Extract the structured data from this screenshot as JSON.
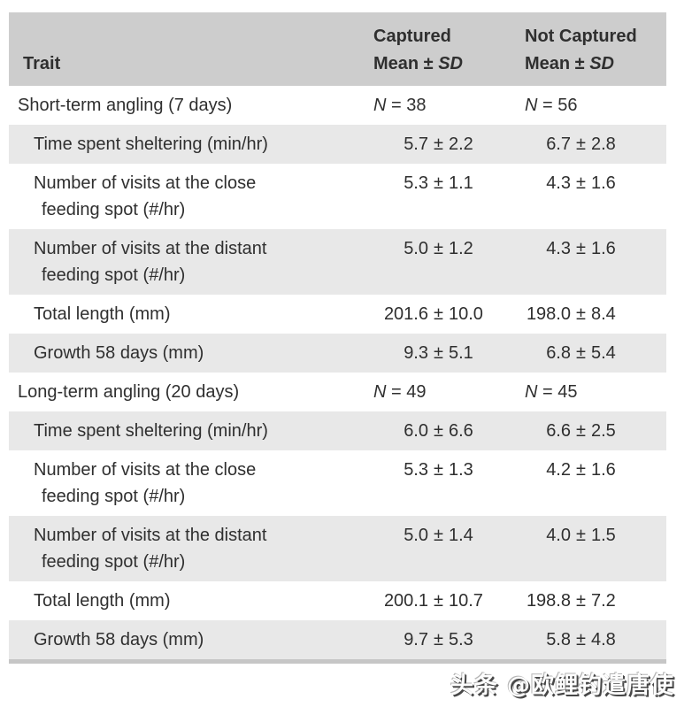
{
  "header": {
    "trait": "Trait",
    "captured": "Captured",
    "not_captured": "Not Captured",
    "mean_prefix": "Mean ± ",
    "sd": "SD"
  },
  "symbols": {
    "n": "N",
    "eq": " = ",
    "pm": "±"
  },
  "rows": [
    {
      "section": true,
      "shaded": false,
      "trait": [
        "Short-term angling (7 days)"
      ],
      "n": [
        "38",
        "56"
      ]
    },
    {
      "section": false,
      "shaded": true,
      "trait": [
        "Time spent sheltering (min/hr)"
      ],
      "values": [
        [
          "5.7",
          "2.2"
        ],
        [
          "6.7",
          "2.8"
        ]
      ]
    },
    {
      "section": false,
      "shaded": false,
      "trait": [
        "Number of visits at the close",
        "feeding spot (#/hr)"
      ],
      "values": [
        [
          "5.3",
          "1.1"
        ],
        [
          "4.3",
          "1.6"
        ]
      ]
    },
    {
      "section": false,
      "shaded": true,
      "trait": [
        "Number of visits at the distant",
        "feeding spot (#/hr)"
      ],
      "values": [
        [
          "5.0",
          "1.2"
        ],
        [
          "4.3",
          "1.6"
        ]
      ]
    },
    {
      "section": false,
      "shaded": false,
      "trait": [
        "Total length (mm)"
      ],
      "values": [
        [
          "201.6",
          "10.0"
        ],
        [
          "198.0",
          "8.4"
        ]
      ]
    },
    {
      "section": false,
      "shaded": true,
      "trait": [
        "Growth 58 days (mm)"
      ],
      "values": [
        [
          "9.3",
          "5.1"
        ],
        [
          "6.8",
          "5.4"
        ]
      ]
    },
    {
      "section": true,
      "shaded": false,
      "trait": [
        "Long-term angling (20 days)"
      ],
      "n": [
        "49",
        "45"
      ]
    },
    {
      "section": false,
      "shaded": true,
      "trait": [
        "Time spent sheltering (min/hr)"
      ],
      "values": [
        [
          "6.0",
          "6.6"
        ],
        [
          "6.6",
          "2.5"
        ]
      ]
    },
    {
      "section": false,
      "shaded": false,
      "trait": [
        "Number of visits at the close",
        "feeding spot (#/hr)"
      ],
      "values": [
        [
          "5.3",
          "1.3"
        ],
        [
          "4.2",
          "1.6"
        ]
      ]
    },
    {
      "section": false,
      "shaded": true,
      "trait": [
        "Number of visits at the distant",
        "feeding spot (#/hr)"
      ],
      "values": [
        [
          "5.0",
          "1.4"
        ],
        [
          "4.0",
          "1.5"
        ]
      ]
    },
    {
      "section": false,
      "shaded": false,
      "trait": [
        "Total length (mm)"
      ],
      "values": [
        [
          "200.1",
          "10.7"
        ],
        [
          "198.8",
          "7.2"
        ]
      ]
    },
    {
      "section": false,
      "shaded": true,
      "trait": [
        "Growth 58 days (mm)"
      ],
      "values": [
        [
          "9.7",
          "5.3"
        ],
        [
          "5.8",
          "4.8"
        ]
      ]
    }
  ],
  "watermark": "头条 @欧鲤钓遣唐使",
  "colors": {
    "header_bg": "#cdcdcd",
    "shaded_row_bg": "#e8e8e8",
    "text": "#2f2f2f",
    "bottom_rule": "#c6c6c6"
  }
}
